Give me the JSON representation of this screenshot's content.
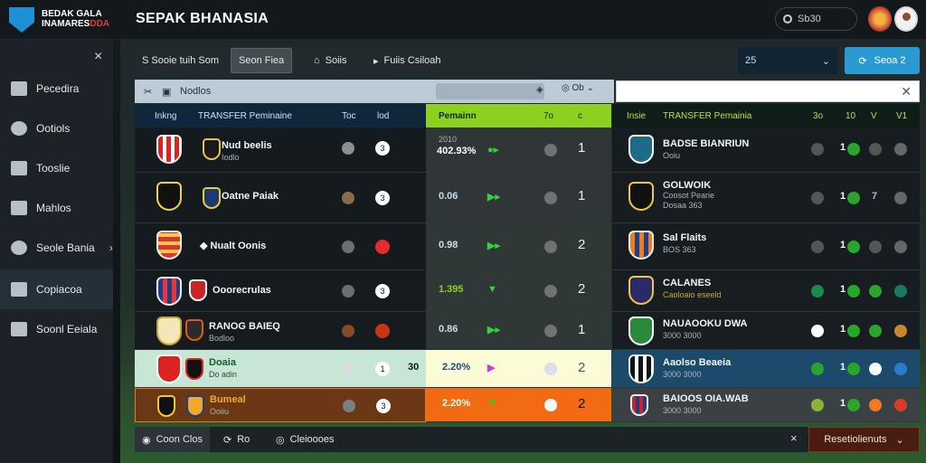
{
  "header": {
    "logo_line1": "BEDAK GALA",
    "logo_line2a": "INAMARES",
    "logo_line2b": "DDA",
    "title": "SEPAK BHANASIA",
    "search_placeholder": "Sb30",
    "brand_color": "#1f8fd6"
  },
  "sidebar": {
    "close_label": "×",
    "items": [
      {
        "label": "Pecedira",
        "icon": "trophy-icon"
      },
      {
        "label": "Ootiols",
        "icon": "shield-icon"
      },
      {
        "label": "Tooslie",
        "icon": "mail-icon"
      },
      {
        "label": "Mahlos",
        "icon": "grid-icon"
      },
      {
        "label": "Seole Bania",
        "icon": "gear-icon",
        "chevron": "›"
      },
      {
        "label": "Copiacoa",
        "icon": "chart-icon",
        "active": true
      },
      {
        "label": "Soonl Eeiala",
        "icon": "document-icon"
      }
    ]
  },
  "filterbar": {
    "items": [
      "S Sooie tuih Som",
      "Seon Fiea",
      "Soiis",
      "Fuiis Csiloah"
    ],
    "select_value": "25",
    "action_label": "Seoa 2"
  },
  "subheader": {
    "label": "Nodlos",
    "segment": "Ob"
  },
  "left_panel": {
    "headers": [
      "Inkng",
      "TRANSFER Peminaine",
      "Toc",
      "lod"
    ],
    "rows": [
      {
        "name": "Nud beelis",
        "sub": "Iodlo",
        "dot": "#8a8f92",
        "val": "3"
      },
      {
        "name": "Oatne Paiak",
        "sub": "",
        "dot": "#8a6a4a",
        "val": "3"
      },
      {
        "name": "Nualt Oonis",
        "sub": "",
        "dot": "#6a6f72",
        "val": "●"
      },
      {
        "name": "Ooorecrulas",
        "sub": "",
        "dot": "#6a6f72",
        "val": "3"
      },
      {
        "name": "RANOG BAIEQ",
        "sub": "Bodloo",
        "dot": "#8a4a2a",
        "val": "●"
      },
      {
        "name": "Doaia",
        "sub": "Do adin",
        "dot": "#d8dde0",
        "val": "1",
        "extra": "30"
      },
      {
        "name": "Bumeal",
        "sub": "Ooiiu",
        "dot": "#7a7f82",
        "val": "3"
      }
    ]
  },
  "mid_panel": {
    "headers": [
      "Pemainn",
      "7o",
      "c"
    ],
    "rows": [
      {
        "sub": "2010",
        "val": "402.93%",
        "rank": "1"
      },
      {
        "sub": "",
        "val": "0.06",
        "rank": "1"
      },
      {
        "sub": "",
        "val": "0.98",
        "rank": "2"
      },
      {
        "sub": "",
        "val": "1.395",
        "rank": "2"
      },
      {
        "sub": "",
        "val": "0.86",
        "rank": "1"
      },
      {
        "sub": "",
        "val": "2.20%",
        "rank": "2"
      },
      {
        "sub": "",
        "val": "2.20%",
        "rank": "2"
      }
    ]
  },
  "right_panel": {
    "headers": [
      "Insie",
      "TRANSFER Pemainia",
      "3o",
      "10",
      "V",
      "V1"
    ],
    "rows": [
      {
        "name": "BADSE BIANRIUN",
        "sub": "Ooiu",
        "nums": [
          "1",
          "0"
        ]
      },
      {
        "name": "GOLWOIK",
        "sub": "Coosot Pearie",
        "sub2": "Dosaa 363",
        "nums": [
          "1",
          "7"
        ]
      },
      {
        "name": "Sal Flaits",
        "sub": "BOS 363",
        "nums": [
          "1",
          "0"
        ]
      },
      {
        "name": "CALANES",
        "sub": "Caoloaio eseeld",
        "nums": [
          "1",
          "0"
        ]
      },
      {
        "name": "NAUAOOKU DWA",
        "sub": "3000 3000",
        "nums": [
          "1",
          "0"
        ]
      },
      {
        "name": "Aaolso Beaeia",
        "sub": "3000 3000",
        "nums": [
          "1",
          "0"
        ]
      },
      {
        "name": "BAIOOS OIA.WAB",
        "sub": "3000 3000",
        "nums": [
          "1",
          "0"
        ]
      }
    ]
  },
  "bottombar": {
    "items": [
      "Coon Clos",
      "Ro",
      "Cleioooes"
    ],
    "close": "×",
    "action_label": "Resetiolienuts"
  }
}
